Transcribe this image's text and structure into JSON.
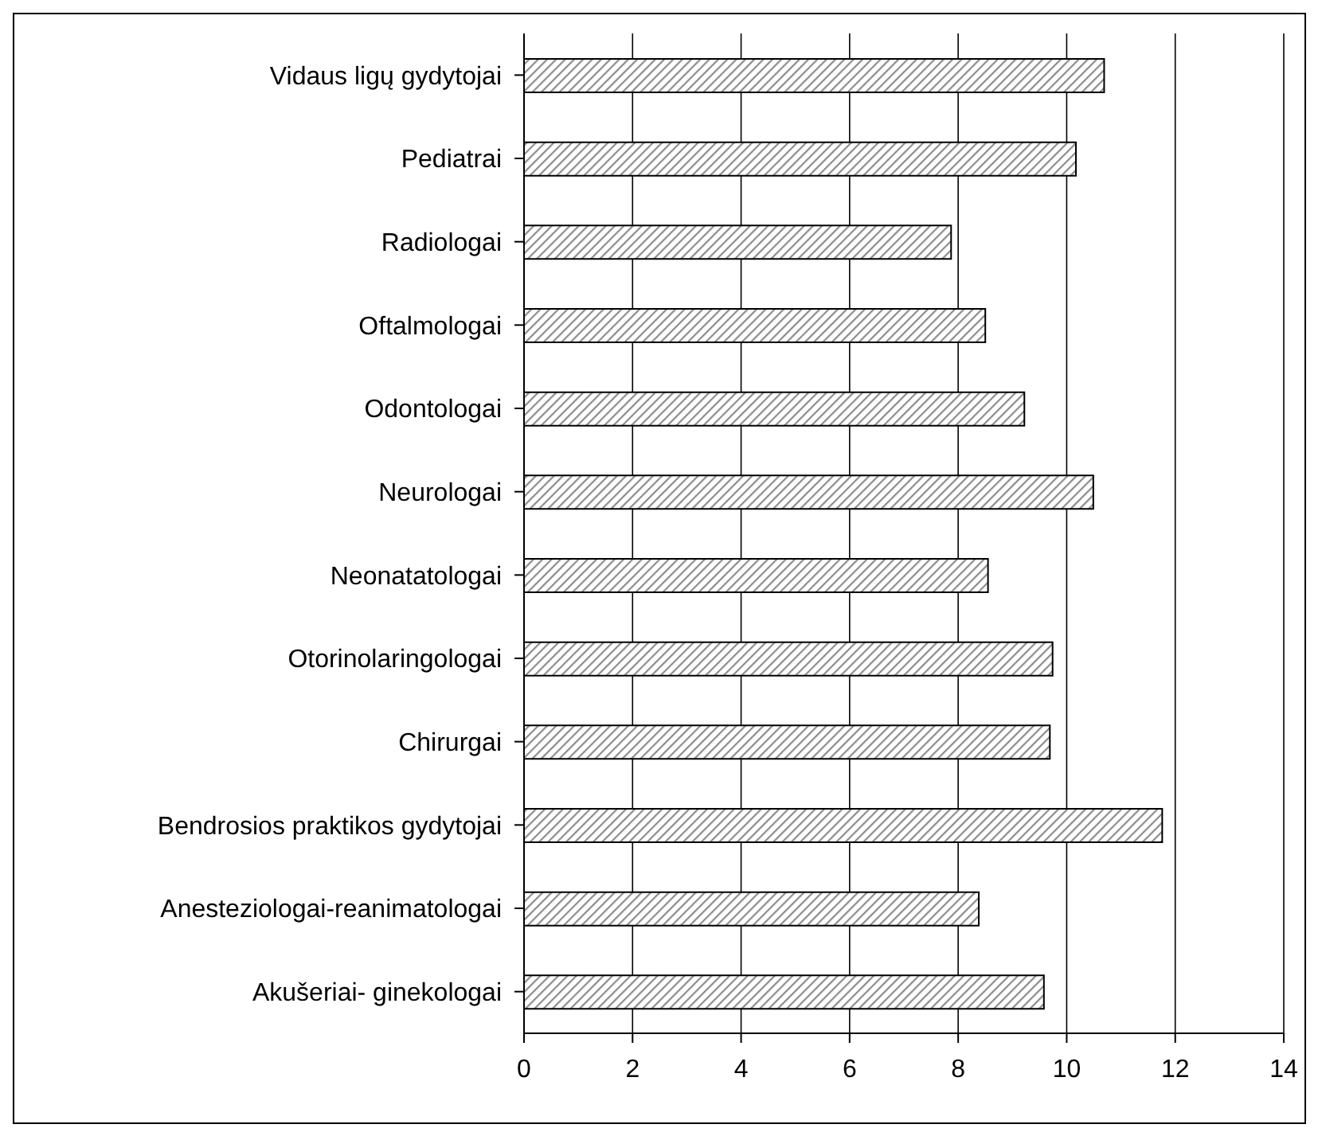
{
  "chart_data": {
    "type": "bar",
    "orientation": "horizontal",
    "categories": [
      "Vidaus ligų gydytojai",
      "Pediatrai",
      "Radiologai",
      "Oftalmologai",
      "Odontologai",
      "Neurologai",
      "Neonatatologai",
      "Otorinolaringologai",
      "Chirurgai",
      "Bendrosios praktikos gydytojai",
      "Anesteziologai-reanimatologai",
      "Akušeriai- ginekologai"
    ],
    "values": [
      10.69,
      10.17,
      7.87,
      8.5,
      9.22,
      10.49,
      8.55,
      9.74,
      9.69,
      11.76,
      8.38,
      9.58
    ],
    "color": "#000000",
    "xlim": [
      0,
      14
    ],
    "xticks": [
      0,
      2,
      4,
      6,
      8,
      10,
      12,
      14
    ],
    "grid": "x"
  }
}
